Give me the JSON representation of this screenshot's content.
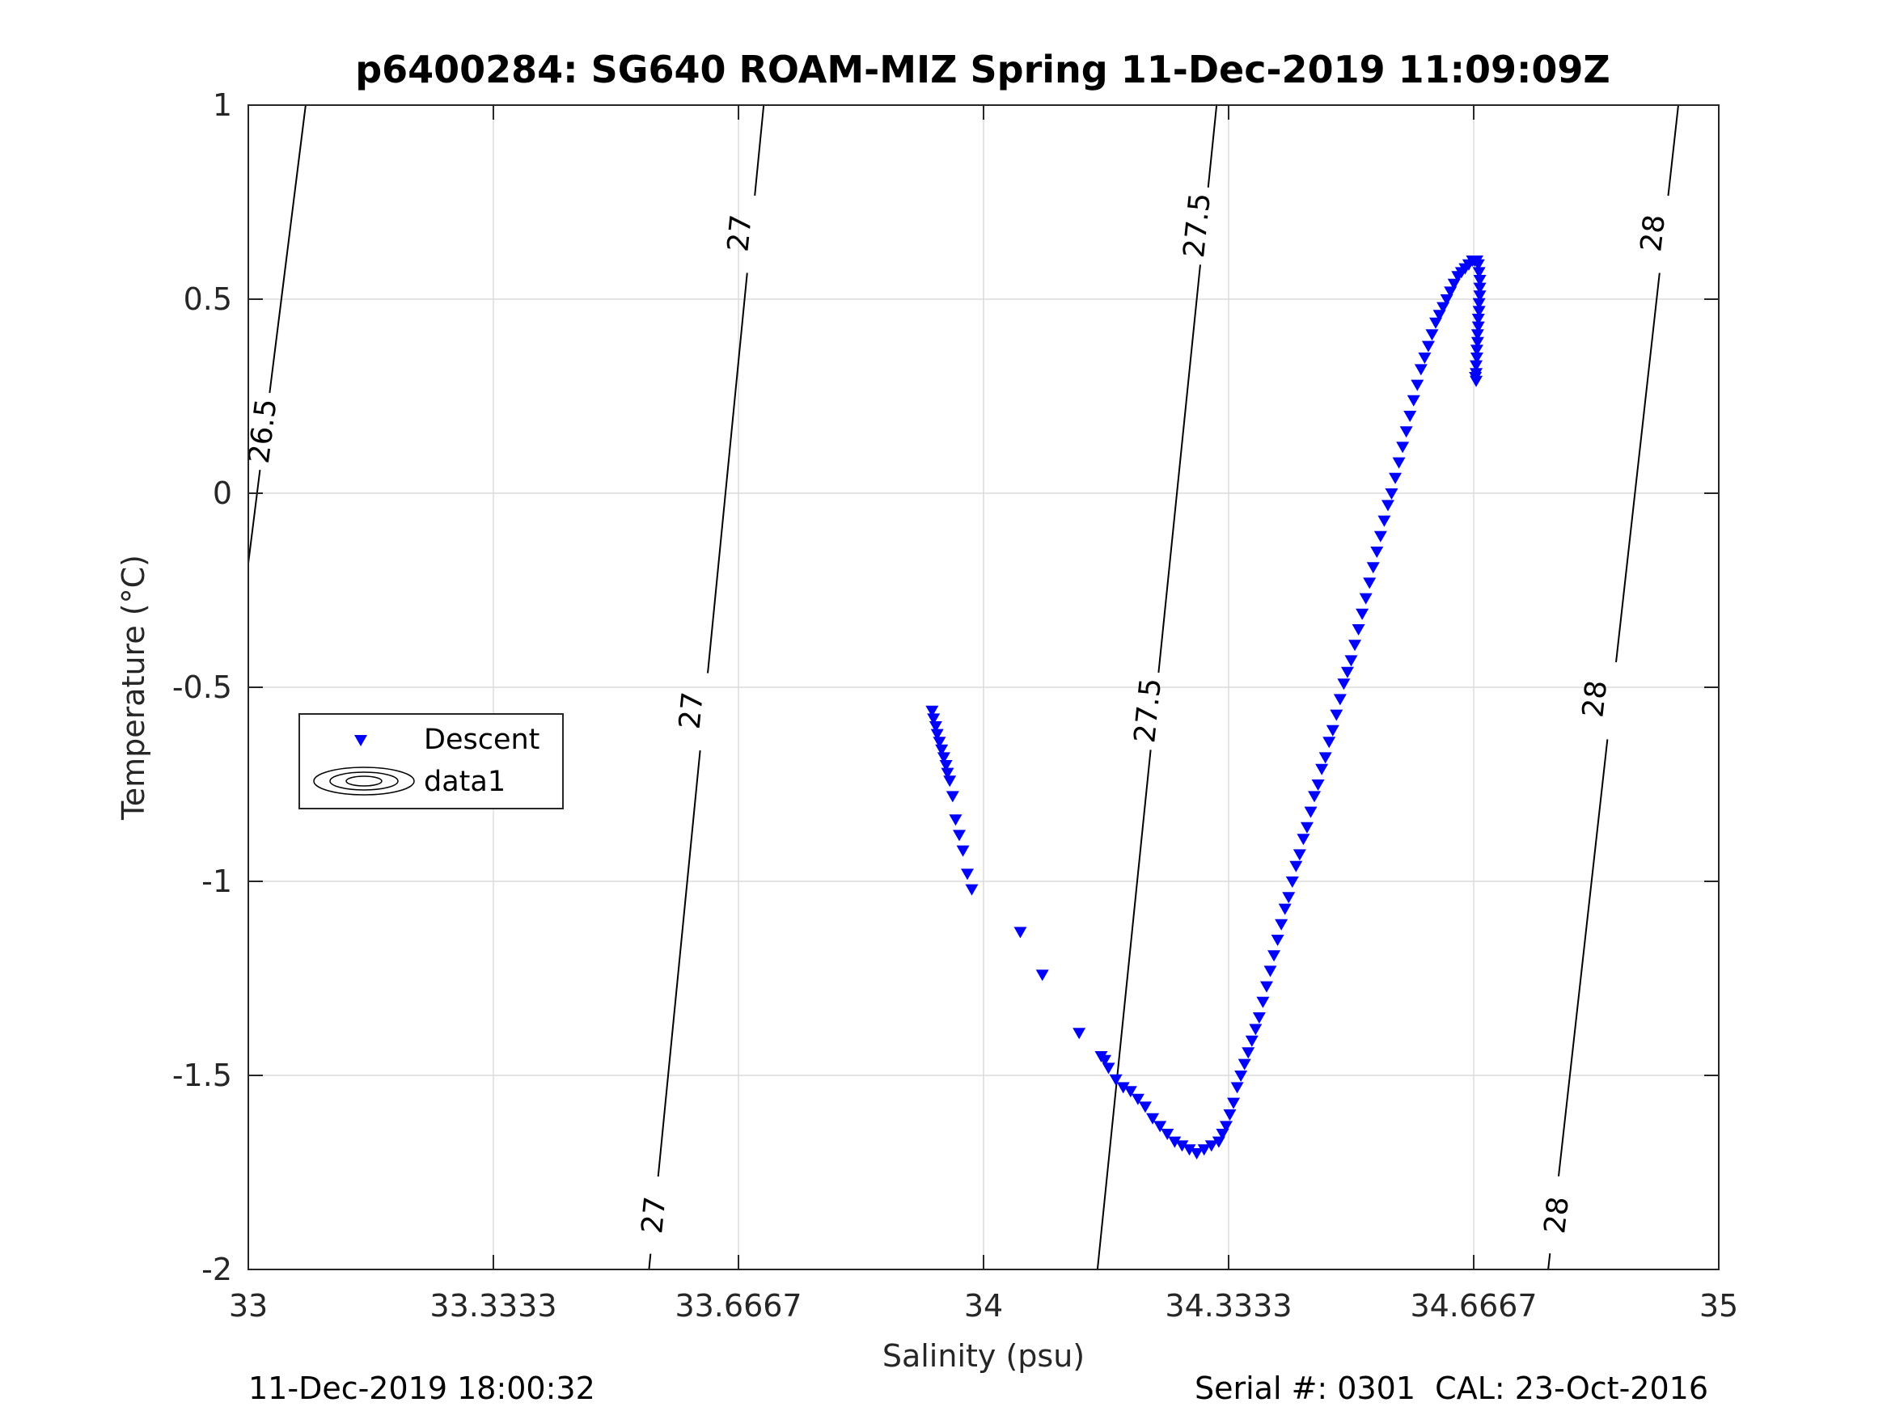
{
  "chart_data": {
    "type": "scatter",
    "title": "p6400284: SG640 ROAM-MIZ Spring 11-Dec-2019 11:09:09Z",
    "xlabel": "Salinity (psu)",
    "ylabel": "Temperature (°C)",
    "xlim": [
      33,
      35
    ],
    "ylim": [
      -2,
      1
    ],
    "x_ticks": [
      33,
      33.3333,
      33.6667,
      34,
      34.3333,
      34.6667,
      35
    ],
    "x_tick_labels": [
      "33",
      "33.3333",
      "33.6667",
      "34",
      "34.3333",
      "34.6667",
      "35"
    ],
    "y_ticks": [
      1,
      0.5,
      0,
      -0.5,
      -1,
      -1.5,
      -2
    ],
    "y_tick_labels": [
      "1",
      "0.5",
      "0",
      "-0.5",
      "-1",
      "-1.5",
      "-2"
    ],
    "grid": true,
    "legend": {
      "placement": "middle-left",
      "entries": [
        "Descent",
        "data1"
      ]
    },
    "series": [
      {
        "name": "Descent",
        "marker": "down-triangle",
        "color": "#0000ff",
        "points": [
          [
            33.93,
            -0.56
          ],
          [
            33.932,
            -0.58
          ],
          [
            33.935,
            -0.6
          ],
          [
            33.937,
            -0.62
          ],
          [
            33.94,
            -0.64
          ],
          [
            33.943,
            -0.66
          ],
          [
            33.946,
            -0.68
          ],
          [
            33.949,
            -0.7
          ],
          [
            33.951,
            -0.72
          ],
          [
            33.954,
            -0.74
          ],
          [
            33.958,
            -0.78
          ],
          [
            33.962,
            -0.84
          ],
          [
            33.967,
            -0.88
          ],
          [
            33.972,
            -0.92
          ],
          [
            33.978,
            -0.98
          ],
          [
            33.984,
            -1.02
          ],
          [
            34.05,
            -1.13
          ],
          [
            34.08,
            -1.24
          ],
          [
            34.13,
            -1.39
          ],
          [
            34.16,
            -1.45
          ],
          [
            34.165,
            -1.46
          ],
          [
            34.17,
            -1.48
          ],
          [
            34.18,
            -1.51
          ],
          [
            34.19,
            -1.53
          ],
          [
            34.2,
            -1.54
          ],
          [
            34.21,
            -1.56
          ],
          [
            34.22,
            -1.58
          ],
          [
            34.23,
            -1.61
          ],
          [
            34.24,
            -1.63
          ],
          [
            34.25,
            -1.65
          ],
          [
            34.26,
            -1.67
          ],
          [
            34.27,
            -1.68
          ],
          [
            34.28,
            -1.69
          ],
          [
            34.29,
            -1.7
          ],
          [
            34.3,
            -1.69
          ],
          [
            34.31,
            -1.68
          ],
          [
            34.32,
            -1.67
          ],
          [
            34.325,
            -1.65
          ],
          [
            34.33,
            -1.63
          ],
          [
            34.335,
            -1.6
          ],
          [
            34.34,
            -1.57
          ],
          [
            34.345,
            -1.53
          ],
          [
            34.35,
            -1.5
          ],
          [
            34.355,
            -1.47
          ],
          [
            34.36,
            -1.44
          ],
          [
            34.365,
            -1.41
          ],
          [
            34.37,
            -1.38
          ],
          [
            34.375,
            -1.35
          ],
          [
            34.38,
            -1.31
          ],
          [
            34.385,
            -1.27
          ],
          [
            34.39,
            -1.23
          ],
          [
            34.395,
            -1.19
          ],
          [
            34.4,
            -1.15
          ],
          [
            34.405,
            -1.11
          ],
          [
            34.41,
            -1.07
          ],
          [
            34.415,
            -1.04
          ],
          [
            34.42,
            -1.0
          ],
          [
            34.425,
            -0.96
          ],
          [
            34.43,
            -0.93
          ],
          [
            34.435,
            -0.89
          ],
          [
            34.44,
            -0.86
          ],
          [
            34.445,
            -0.82
          ],
          [
            34.45,
            -0.78
          ],
          [
            34.455,
            -0.75
          ],
          [
            34.46,
            -0.71
          ],
          [
            34.465,
            -0.68
          ],
          [
            34.47,
            -0.64
          ],
          [
            34.475,
            -0.61
          ],
          [
            34.48,
            -0.57
          ],
          [
            34.485,
            -0.53
          ],
          [
            34.49,
            -0.49
          ],
          [
            34.495,
            -0.46
          ],
          [
            34.5,
            -0.43
          ],
          [
            34.505,
            -0.39
          ],
          [
            34.51,
            -0.35
          ],
          [
            34.515,
            -0.31
          ],
          [
            34.52,
            -0.27
          ],
          [
            34.525,
            -0.23
          ],
          [
            34.53,
            -0.19
          ],
          [
            34.535,
            -0.15
          ],
          [
            34.54,
            -0.11
          ],
          [
            34.545,
            -0.07
          ],
          [
            34.55,
            -0.03
          ],
          [
            34.555,
            0.0
          ],
          [
            34.56,
            0.04
          ],
          [
            34.565,
            0.08
          ],
          [
            34.57,
            0.12
          ],
          [
            34.575,
            0.16
          ],
          [
            34.58,
            0.2
          ],
          [
            34.585,
            0.24
          ],
          [
            34.59,
            0.28
          ],
          [
            34.595,
            0.32
          ],
          [
            34.6,
            0.35
          ],
          [
            34.605,
            0.38
          ],
          [
            34.61,
            0.41
          ],
          [
            34.615,
            0.44
          ],
          [
            34.62,
            0.46
          ],
          [
            34.625,
            0.48
          ],
          [
            34.63,
            0.5
          ],
          [
            34.635,
            0.52
          ],
          [
            34.64,
            0.54
          ],
          [
            34.645,
            0.56
          ],
          [
            34.65,
            0.57
          ],
          [
            34.655,
            0.58
          ],
          [
            34.66,
            0.59
          ],
          [
            34.665,
            0.6
          ],
          [
            34.668,
            0.6
          ],
          [
            34.671,
            0.6
          ],
          [
            34.673,
            0.59
          ],
          [
            34.674,
            0.57
          ],
          [
            34.675,
            0.55
          ],
          [
            34.675,
            0.53
          ],
          [
            34.675,
            0.51
          ],
          [
            34.674,
            0.49
          ],
          [
            34.674,
            0.47
          ],
          [
            34.673,
            0.45
          ],
          [
            34.673,
            0.43
          ],
          [
            34.672,
            0.41
          ],
          [
            34.672,
            0.39
          ],
          [
            34.671,
            0.37
          ],
          [
            34.671,
            0.35
          ],
          [
            34.67,
            0.33
          ],
          [
            34.67,
            0.31
          ],
          [
            34.669,
            0.3
          ],
          [
            34.67,
            0.29
          ]
        ]
      },
      {
        "name": "data1",
        "type": "contour",
        "contour_labels": [
          "26.5",
          "27",
          "27.5",
          "28"
        ]
      }
    ],
    "isopycnals": [
      {
        "label": "26.5",
        "line": [
          [
            33.0,
            -0.18
          ],
          [
            33.078,
            1.0
          ]
        ],
        "label_at": [
          [
            33.02,
            0.16
          ]
        ]
      },
      {
        "label": "27",
        "line": [
          [
            33.545,
            -2.0
          ],
          [
            33.701,
            1.0
          ]
        ],
        "label_at": [
          [
            33.552,
            -1.86
          ],
          [
            33.603,
            -0.56
          ],
          [
            33.669,
            0.67
          ]
        ]
      },
      {
        "label": "27.5",
        "line": [
          [
            34.155,
            -2.0
          ],
          [
            34.317,
            1.0
          ]
        ],
        "label_at": [
          [
            34.224,
            -0.56
          ],
          [
            34.291,
            0.69
          ]
        ]
      },
      {
        "label": "28",
        "line": [
          [
            34.768,
            -2.0
          ],
          [
            34.945,
            1.0
          ]
        ],
        "label_at": [
          [
            34.78,
            -1.86
          ],
          [
            34.832,
            -0.53
          ],
          [
            34.911,
            0.67
          ]
        ]
      }
    ]
  },
  "legend": {
    "descent_label": "Descent",
    "data1_label": "data1"
  },
  "footer": {
    "left": "11-Dec-2019 18:00:32",
    "right": "Serial #: 0301  CAL: 23-Oct-2016"
  },
  "colors": {
    "descent": "#0000ff",
    "grid": "#dcdcdc",
    "axis": "#262626"
  }
}
